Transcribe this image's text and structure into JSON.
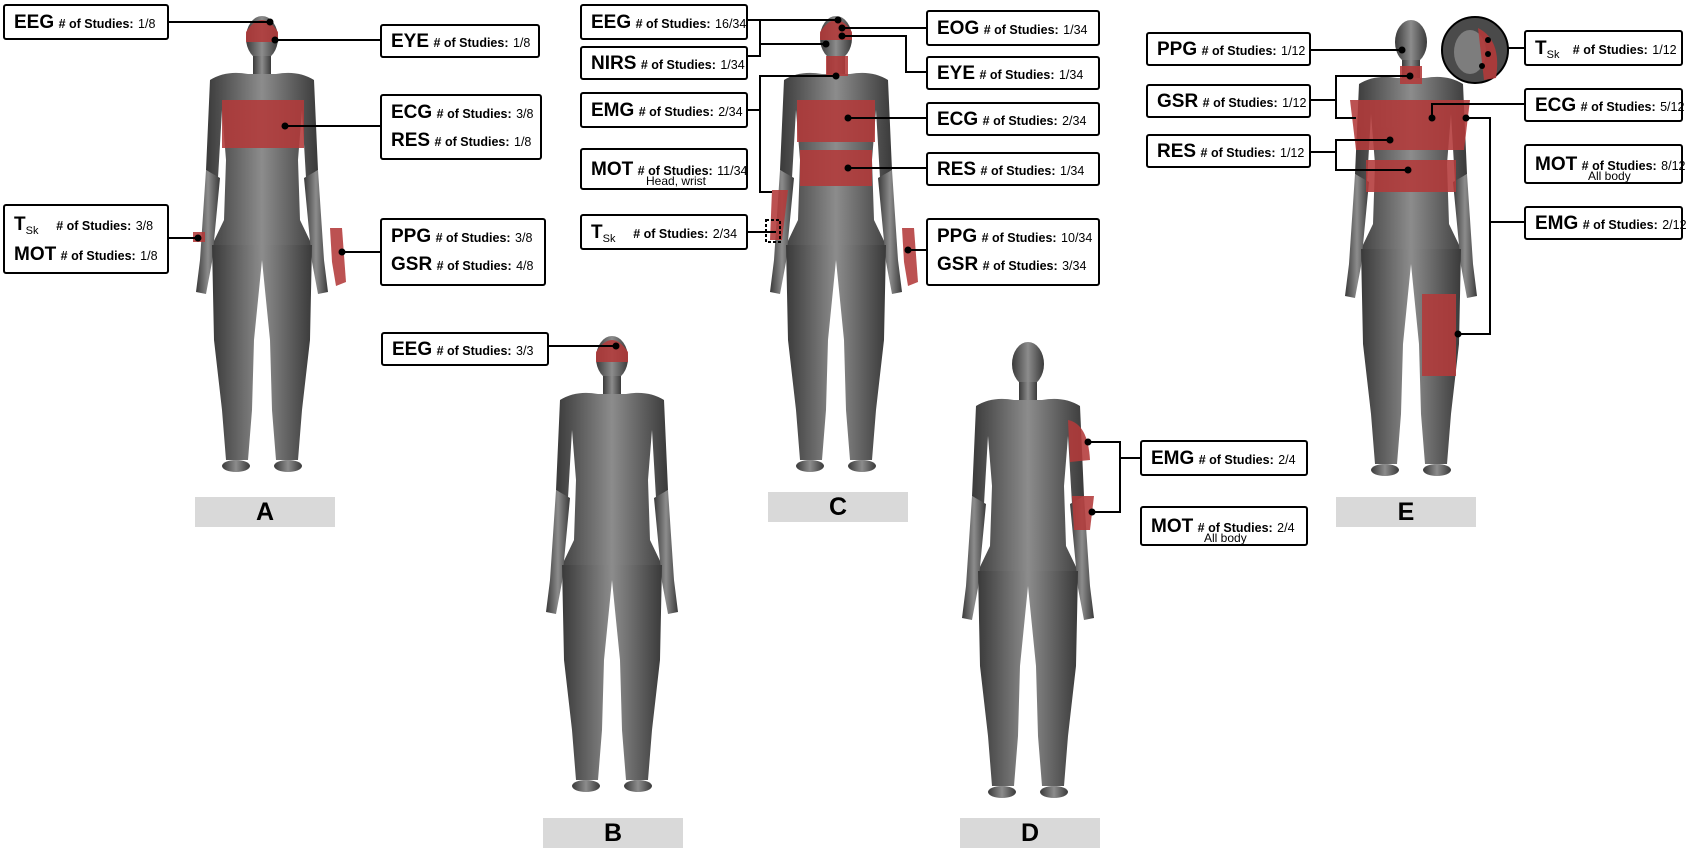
{
  "label_prefix": "# of Studies:",
  "colors": {
    "sensor_region": "#b33a3a",
    "body_light": "#8a8a8a",
    "body_dark": "#3f3f3f",
    "panel_bg": "#d9d9d9"
  },
  "figures": {
    "A": {
      "panel_label": "A",
      "labels": [
        {
          "rows": [
            {
              "code": "EEG",
              "count": "1/8"
            }
          ]
        },
        {
          "rows": [
            {
              "code": "EYE",
              "count": "1/8"
            }
          ]
        },
        {
          "rows": [
            {
              "code": "ECG",
              "count": "3/8"
            },
            {
              "code": "RES",
              "count": "1/8"
            }
          ]
        },
        {
          "rows": [
            {
              "code": "T",
              "code_sub": "Sk",
              "count": "3/8"
            },
            {
              "code": "MOT",
              "count": "1/8"
            }
          ]
        },
        {
          "rows": [
            {
              "code": "PPG",
              "count": "3/8"
            },
            {
              "code": "GSR",
              "count": "4/8"
            }
          ]
        }
      ]
    },
    "B": {
      "panel_label": "B",
      "labels": [
        {
          "rows": [
            {
              "code": "EEG",
              "count": "3/3"
            }
          ]
        }
      ]
    },
    "C": {
      "panel_label": "C",
      "labels": [
        {
          "rows": [
            {
              "code": "EEG",
              "count": "16/34"
            }
          ]
        },
        {
          "rows": [
            {
              "code": "NIRS",
              "count": "1/34"
            }
          ]
        },
        {
          "rows": [
            {
              "code": "EMG",
              "count": "2/34"
            }
          ]
        },
        {
          "rows": [
            {
              "code": "MOT",
              "count": "11/34",
              "note": "Head, wrist"
            }
          ]
        },
        {
          "rows": [
            {
              "code": "T",
              "code_sub": "Sk",
              "count": "2/34"
            }
          ]
        },
        {
          "rows": [
            {
              "code": "EOG",
              "count": "1/34"
            }
          ]
        },
        {
          "rows": [
            {
              "code": "EYE",
              "count": "1/34"
            }
          ]
        },
        {
          "rows": [
            {
              "code": "ECG",
              "count": "2/34"
            }
          ]
        },
        {
          "rows": [
            {
              "code": "RES",
              "count": "1/34"
            }
          ]
        },
        {
          "rows": [
            {
              "code": "PPG",
              "count": "10/34"
            },
            {
              "code": "GSR",
              "count": "3/34"
            }
          ]
        }
      ]
    },
    "D": {
      "panel_label": "D",
      "labels": [
        {
          "rows": [
            {
              "code": "EMG",
              "count": "2/4"
            }
          ]
        },
        {
          "rows": [
            {
              "code": "MOT",
              "count": "2/4",
              "note": "All body"
            }
          ]
        }
      ]
    },
    "E": {
      "panel_label": "E",
      "labels": [
        {
          "rows": [
            {
              "code": "PPG",
              "count": "1/12"
            }
          ]
        },
        {
          "rows": [
            {
              "code": "GSR",
              "count": "1/12"
            }
          ]
        },
        {
          "rows": [
            {
              "code": "RES",
              "count": "1/12"
            }
          ]
        },
        {
          "rows": [
            {
              "code": "T",
              "code_sub": "Sk",
              "count": "1/12"
            }
          ]
        },
        {
          "rows": [
            {
              "code": "ECG",
              "count": "5/12"
            }
          ]
        },
        {
          "rows": [
            {
              "code": "MOT",
              "count": "8/12",
              "note": "All body"
            }
          ]
        },
        {
          "rows": [
            {
              "code": "EMG",
              "count": "2/12"
            }
          ]
        }
      ]
    }
  }
}
